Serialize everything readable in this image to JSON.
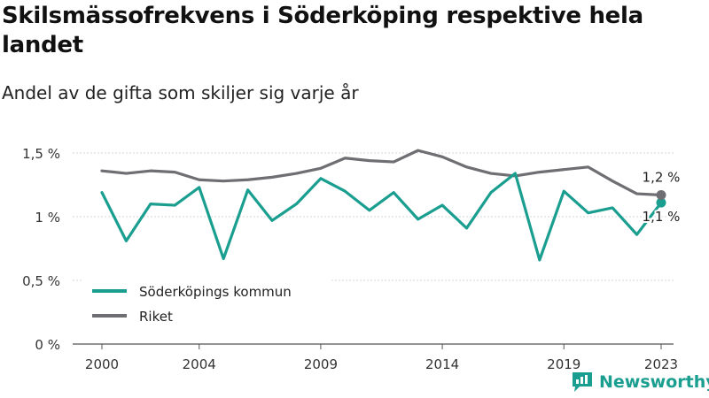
{
  "title": "Skilsmässofrekvens i Söderköping respektive hela landet",
  "subtitle": "Andel av de gifta som skiljer sig varje år",
  "brand": {
    "name": "Newsworthy"
  },
  "chart_data": {
    "type": "line",
    "x": [
      2000,
      2001,
      2002,
      2003,
      2004,
      2005,
      2006,
      2007,
      2008,
      2009,
      2010,
      2011,
      2012,
      2013,
      2014,
      2015,
      2016,
      2017,
      2018,
      2019,
      2020,
      2021,
      2022,
      2023
    ],
    "x_ticks": [
      2000,
      2004,
      2009,
      2014,
      2019,
      2023
    ],
    "x_tick_labels": [
      "2000",
      "2004",
      "2009",
      "2014",
      "2019",
      "2023"
    ],
    "y_ticks": [
      0,
      0.5,
      1,
      1.5
    ],
    "y_tick_labels": [
      "0 %",
      "0,5 %",
      "1 %",
      "1,5 %"
    ],
    "ylim": [
      0,
      1.5
    ],
    "grid": "horizontal",
    "legend_position": "bottom-left",
    "series": [
      {
        "name": "Söderköpings kommun",
        "color": "#1a9e8f",
        "values": [
          1.19,
          0.81,
          1.1,
          1.09,
          1.23,
          0.67,
          1.21,
          0.97,
          1.1,
          1.3,
          1.2,
          1.05,
          1.19,
          0.98,
          1.09,
          0.91,
          1.19,
          1.34,
          0.66,
          1.2,
          1.03,
          1.07,
          0.86,
          1.11
        ],
        "end_label": "1,1 %"
      },
      {
        "name": "Riket",
        "color": "#6e6e73",
        "values": [
          1.36,
          1.34,
          1.36,
          1.35,
          1.29,
          1.28,
          1.29,
          1.31,
          1.34,
          1.38,
          1.46,
          1.44,
          1.43,
          1.52,
          1.47,
          1.39,
          1.34,
          1.32,
          1.35,
          1.37,
          1.39,
          1.28,
          1.18,
          1.17
        ],
        "end_label": "1,2 %"
      }
    ]
  }
}
